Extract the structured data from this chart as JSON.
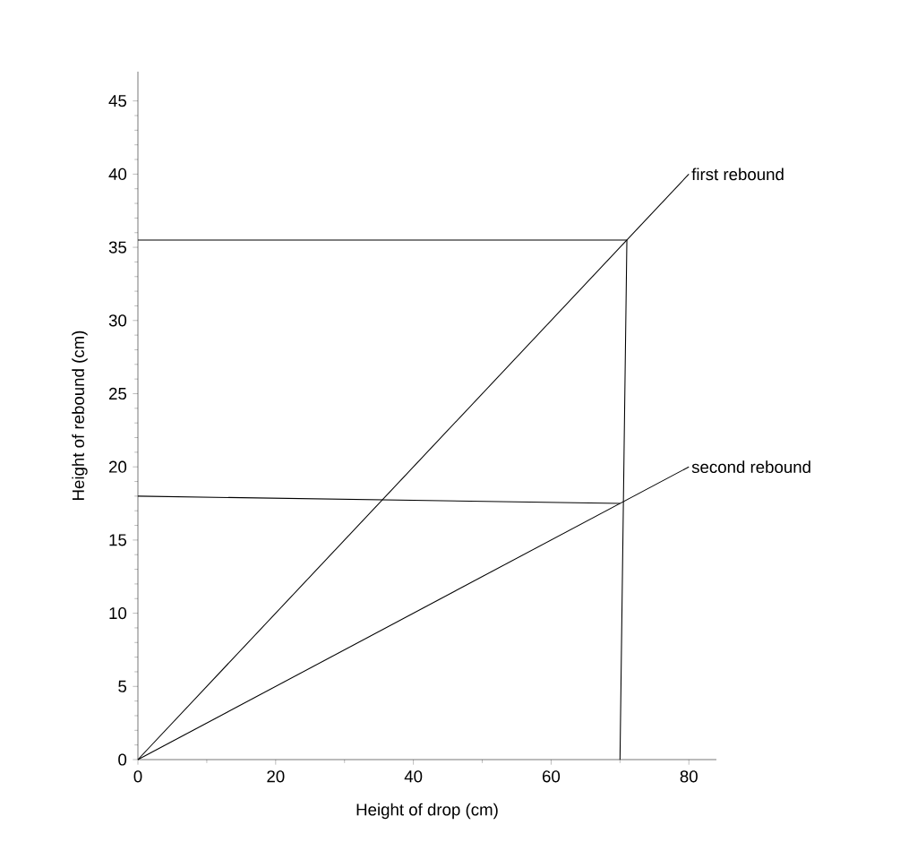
{
  "chart_data": {
    "type": "line",
    "xlabel": "Height of drop (cm)",
    "ylabel": "Height of rebound (cm)",
    "xlim": [
      0,
      84
    ],
    "ylim": [
      0,
      47
    ],
    "xticks": [
      0,
      20,
      40,
      60,
      80
    ],
    "yticks": [
      0,
      5,
      10,
      15,
      20,
      25,
      30,
      35,
      40,
      45
    ],
    "marker": "none",
    "line_style": "solid",
    "legend": false,
    "grid": false,
    "series": [
      {
        "name": "first rebound",
        "color": "#000000",
        "x": [
          0,
          80
        ],
        "values": [
          0,
          40
        ]
      },
      {
        "name": "second rebound",
        "color": "#000000",
        "x": [
          0,
          80
        ],
        "values": [
          0,
          20
        ]
      },
      {
        "color": "#000000",
        "x": [
          0,
          71,
          70
        ],
        "values": [
          35.5,
          35.5,
          0
        ]
      },
      {
        "color": "#000000",
        "x": [
          0,
          70
        ],
        "values": [
          18,
          17.5
        ]
      }
    ]
  }
}
